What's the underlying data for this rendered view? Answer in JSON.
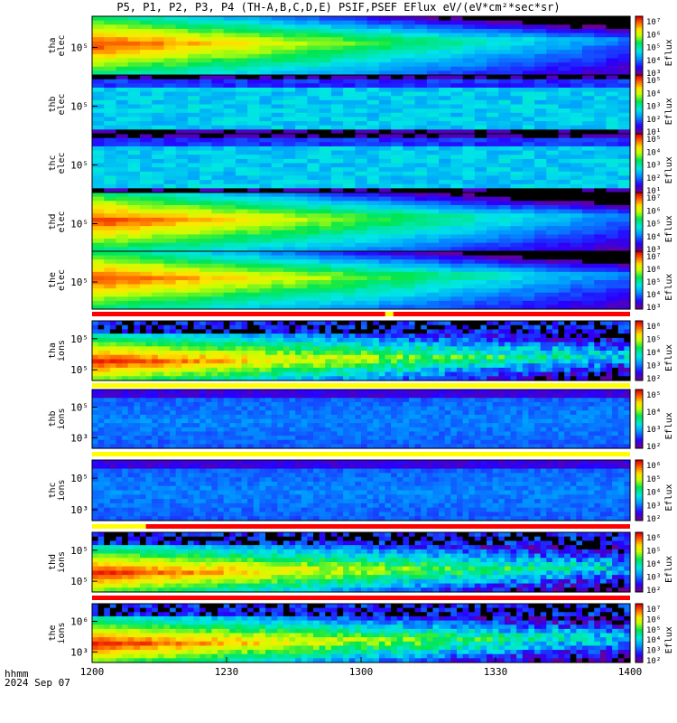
{
  "title": "P5, P1, P2, P3, P4 (TH-A,B,C,D,E) PSIF,PSEF EFlux eV/(eV*cm²*sec*sr)",
  "footer": {
    "line1": "hhmm",
    "line2": "2024 Sep 07"
  },
  "colors": {
    "red": "#ff0000",
    "yellow": "#ffff00",
    "black": "#000000"
  },
  "chart_data": {
    "type": "heatmap",
    "x_ticks": [
      "1200",
      "1230",
      "1300",
      "1330",
      "1400"
    ],
    "panels": [
      {
        "ylabel": [
          "tha",
          "elec"
        ],
        "y_ticks": [
          "10⁵"
        ],
        "cbar_label": "Eflux",
        "cbar_ticks": [
          "10⁷",
          "10⁶",
          "10⁵",
          "10⁴",
          "10³"
        ],
        "pattern": "elec-hot"
      },
      {
        "ylabel": [
          "thb",
          "elec"
        ],
        "y_ticks": [
          "10⁵"
        ],
        "cbar_label": "Eflux",
        "cbar_ticks": [
          "10⁵",
          "10⁴",
          "10³",
          "10²",
          "10¹"
        ],
        "pattern": "elec-cool"
      },
      {
        "ylabel": [
          "thc",
          "elec"
        ],
        "y_ticks": [
          "10⁵"
        ],
        "cbar_label": "Eflux",
        "cbar_ticks": [
          "10⁵",
          "10⁴",
          "10³",
          "10²",
          "10¹"
        ],
        "pattern": "elec-cool"
      },
      {
        "ylabel": [
          "thd",
          "elec"
        ],
        "y_ticks": [
          "10⁵"
        ],
        "cbar_label": "Eflux",
        "cbar_ticks": [
          "10⁷",
          "10⁶",
          "10⁵",
          "10⁴",
          "10³"
        ],
        "pattern": "elec-hot"
      },
      {
        "ylabel": [
          "the",
          "elec"
        ],
        "y_ticks": [
          "10⁵"
        ],
        "cbar_label": "Eflux",
        "cbar_ticks": [
          "10⁷",
          "10⁶",
          "10⁵",
          "10⁴",
          "10³"
        ],
        "pattern": "elec-hot"
      },
      {
        "ylabel": [
          "tha",
          "ions"
        ],
        "y_ticks": [
          "10⁵",
          "10⁵"
        ],
        "cbar_label": "Eflux",
        "cbar_ticks": [
          "10⁶",
          "10⁵",
          "10⁴",
          "10³",
          "10²"
        ],
        "pattern": "ions-hot"
      },
      {
        "ylabel": [
          "thb",
          "ions"
        ],
        "y_ticks": [
          "10⁵",
          "10³"
        ],
        "cbar_label": "Eflux",
        "cbar_ticks": [
          "10⁵",
          "10⁴",
          "10³",
          "10²"
        ],
        "pattern": "ions-cool"
      },
      {
        "ylabel": [
          "thc",
          "ions"
        ],
        "y_ticks": [
          "10⁵",
          "10³"
        ],
        "cbar_label": "Eflux",
        "cbar_ticks": [
          "10⁶",
          "10⁵",
          "10⁴",
          "10³",
          "10²"
        ],
        "pattern": "ions-cool"
      },
      {
        "ylabel": [
          "thd",
          "ions"
        ],
        "y_ticks": [
          "10⁵",
          "10⁵"
        ],
        "cbar_label": "Eflux",
        "cbar_ticks": [
          "10⁶",
          "10⁵",
          "10⁴",
          "10³",
          "10²"
        ],
        "pattern": "ions-hot"
      },
      {
        "ylabel": [
          "the",
          "ions"
        ],
        "y_ticks": [
          "10⁶",
          "10³"
        ],
        "cbar_label": "Eflux",
        "cbar_ticks": [
          "10⁷",
          "10⁶",
          "10⁵",
          "10⁴",
          "10³",
          "10²"
        ],
        "pattern": "ions-hot"
      }
    ]
  }
}
